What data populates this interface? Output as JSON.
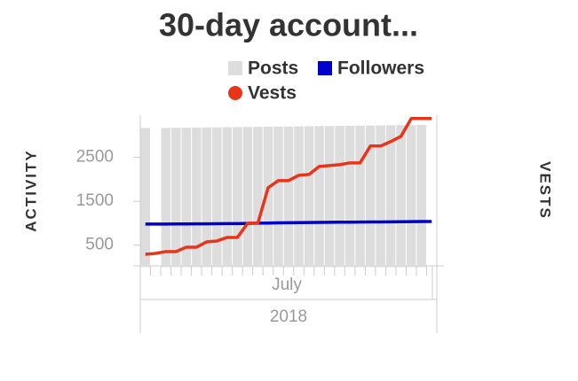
{
  "chart_data": {
    "type": "combo",
    "title": "30-day account...",
    "y_label": "ACTIVITY",
    "y2_label": "VESTS",
    "x_group_label": "July",
    "x_year_label": "2018",
    "categories": [
      null,
      null,
      null,
      null,
      null,
      null,
      null,
      null,
      null,
      null,
      null,
      null,
      null,
      null,
      null,
      null,
      null,
      null,
      null,
      null,
      null,
      null,
      null,
      null,
      null,
      null,
      null,
      null,
      null
    ],
    "ylim": [
      0,
      3460
    ],
    "yticks": [
      500,
      1500,
      2500
    ],
    "y2lim": [
      0,
      3460
    ],
    "series": [
      {
        "name": "Posts",
        "kind": "bar",
        "color": "#dddddd",
        "values": [
          3170,
          null,
          3170,
          3173,
          3176,
          3178,
          3181,
          3184,
          3187,
          3189,
          3192,
          3195,
          3198,
          3200,
          3203,
          3206,
          3209,
          3211,
          3214,
          3217,
          3220,
          3222,
          3225,
          3228,
          3231,
          3233,
          3236,
          3240,
          null
        ]
      },
      {
        "name": "Followers",
        "kind": "line",
        "color": "#0000cc",
        "values": [
          980,
          981,
          982,
          983,
          984,
          985,
          986,
          988,
          990,
          992,
          995,
          1000,
          1004,
          1008,
          1012,
          1015,
          1017,
          1019,
          1021,
          1023,
          1024,
          1026,
          1028,
          1030,
          1032,
          1034,
          1036,
          1038,
          1040
        ]
      },
      {
        "name": "Vests",
        "kind": "line",
        "axis": "y2",
        "color": "#e8351a",
        "values": [
          293,
          313,
          354,
          354,
          455,
          455,
          576,
          596,
          677,
          677,
          1000,
          1000,
          1808,
          1970,
          1970,
          2091,
          2111,
          2293,
          2313,
          2333,
          2374,
          2374,
          2758,
          2758,
          2859,
          2980,
          3384,
          3384,
          3384
        ]
      }
    ]
  }
}
